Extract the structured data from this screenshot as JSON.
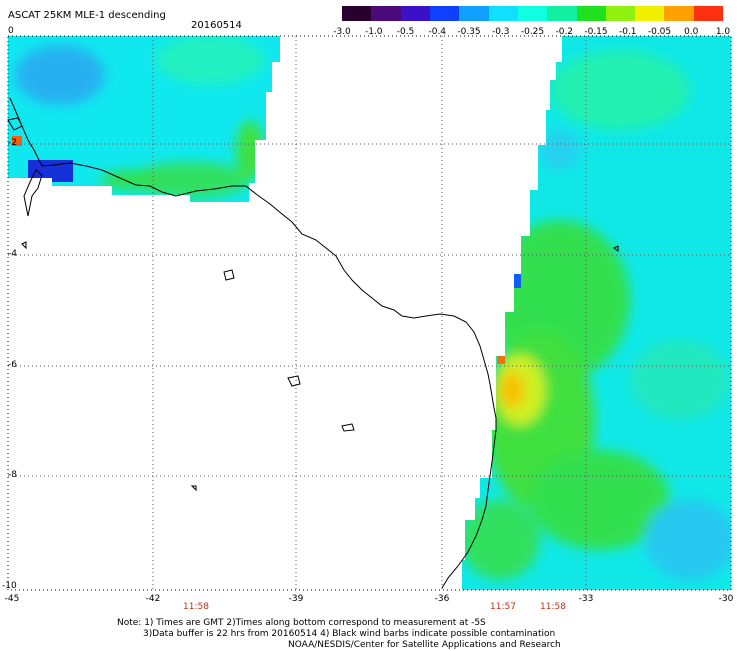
{
  "header": {
    "title": "ASCAT 25KM MLE-1 descending",
    "date": "20160514"
  },
  "colorbar": {
    "labels": [
      "-3.0",
      "-1.0",
      "-0.5",
      "-0.4",
      "-0.35",
      "-0.3",
      "-0.25",
      "-0.2",
      "-0.15",
      "-0.1",
      "-0.05",
      "0.0",
      "1.0"
    ],
    "colors": [
      "#2a0030",
      "#4b0a7a",
      "#3a10c8",
      "#1040ff",
      "#10a0ff",
      "#10e0ff",
      "#10ffe0",
      "#10f0a0",
      "#20e020",
      "#90f010",
      "#f0f000",
      "#ffa000",
      "#ff3010"
    ]
  },
  "axes": {
    "y_labels": [
      "0",
      "-2",
      "-4",
      "-6",
      "-8",
      "-10"
    ],
    "x_labels": [
      "-45",
      "-42",
      "-39",
      "-36",
      "-33",
      "-30"
    ]
  },
  "times": [
    "11:58",
    "11:57",
    "11:58"
  ],
  "notes": [
    "Note: 1) Times are GMT 2)Times along bottom correspond to measurement at -5S",
    "3)Data buffer is 22 hrs from 20160514 4) Black wind barbs indicate possible contamination",
    "NOAA/NESDIS/Center for Satellite Applications and Research"
  ]
}
